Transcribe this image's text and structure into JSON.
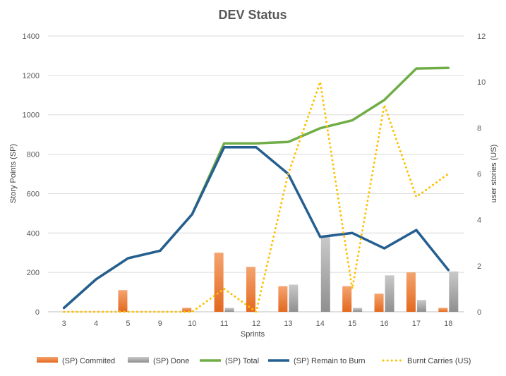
{
  "chart_data": {
    "type": "bar",
    "title": "DEV Status",
    "xlabel": "Sprints",
    "ylabel": "Story Points (SP)",
    "y2label": "user stories (US)",
    "categories": [
      "3",
      "4",
      "5",
      "9",
      "10",
      "11",
      "12",
      "13",
      "14",
      "15",
      "16",
      "17",
      "18"
    ],
    "ylim": [
      0,
      1400
    ],
    "y2lim": [
      0,
      12
    ],
    "yticks": [
      "0",
      "200",
      "400",
      "600",
      "800",
      "1000",
      "1200",
      "1400"
    ],
    "y2ticks": [
      "0",
      "2",
      "4",
      "6",
      "8",
      "10",
      "12"
    ],
    "grid": true,
    "legend_position": "bottom",
    "series": [
      {
        "name": "(SP) Commited",
        "kind": "bar",
        "axis": "left",
        "color": "#ED7D31",
        "values": [
          0,
          0,
          110,
          0,
          20,
          300,
          228,
          130,
          0,
          130,
          92,
          200,
          20
        ]
      },
      {
        "name": "(SP) Done",
        "kind": "bar",
        "axis": "left",
        "color": "#A5A5A5",
        "values": [
          0,
          0,
          0,
          0,
          0,
          20,
          0,
          138,
          380,
          20,
          185,
          60,
          205
        ]
      },
      {
        "name": "(SP) Total",
        "kind": "line",
        "axis": "left",
        "color": "#70AD47",
        "values": [
          20,
          165,
          272,
          310,
          495,
          855,
          855,
          862,
          932,
          972,
          1075,
          1235,
          1238
        ]
      },
      {
        "name": "(SP) Remain to Burn",
        "kind": "line",
        "axis": "left",
        "color": "#255E91",
        "values": [
          20,
          165,
          272,
          310,
          495,
          835,
          835,
          700,
          380,
          400,
          322,
          415,
          212
        ]
      },
      {
        "name": "Burnt Carries (US)",
        "kind": "dotted-line",
        "axis": "right",
        "color": "#FFC000",
        "values": [
          0,
          0,
          0,
          0,
          0,
          1,
          0,
          6,
          10,
          1,
          9,
          5,
          6
        ]
      }
    ]
  }
}
